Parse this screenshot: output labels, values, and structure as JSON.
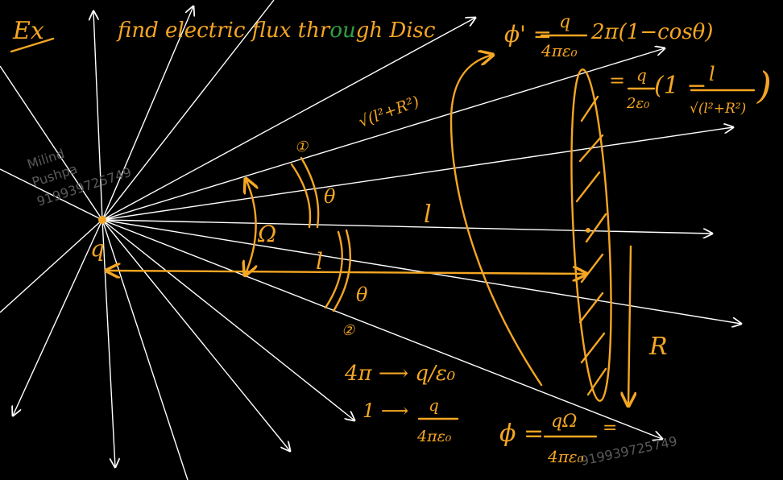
{
  "header": {
    "example_label": "Ex",
    "title_part1": "find electric flux thr",
    "title_green": "ou",
    "title_part2": "gh Disc"
  },
  "colors": {
    "ink": "#f5a623",
    "field_lines": "#ffffff",
    "highlight": "#2ea043",
    "background": "#000000"
  },
  "formulas": {
    "phi_prime": "ϕ' =",
    "q_num": "q",
    "four_pi_eps": "4πε₀",
    "two_pi_term": "2π(1−cosθ)",
    "equals": "=",
    "q_over_2eps_num": "q",
    "q_over_2eps_den": "2ε₀",
    "one_minus": "(1 −",
    "l_num": "l",
    "sqrt_den": "√(l²+R²)",
    "close_paren": ")",
    "hyp": "√(l²+R²)",
    "ratio1": "4π ⟶ q/ε₀",
    "ratio2_left": "1 ⟶",
    "ratio2_num": "q",
    "ratio2_den": "4πε₀",
    "phi_final": "ϕ =",
    "phi_final_num": "qΩ",
    "phi_final_den": "4πε₀",
    "phi_final_eq": "="
  },
  "labels": {
    "charge": "q",
    "solid_angle": "Ω",
    "distance_top": "l",
    "distance_mid": "l",
    "theta_top": "θ",
    "theta_bottom": "θ",
    "marker1": "①",
    "marker2": "②",
    "radius": "R"
  },
  "watermark": {
    "line1": "Milind",
    "line2": "Pushpa",
    "line3": "919939725749",
    "bottom_number": "919939725749"
  }
}
